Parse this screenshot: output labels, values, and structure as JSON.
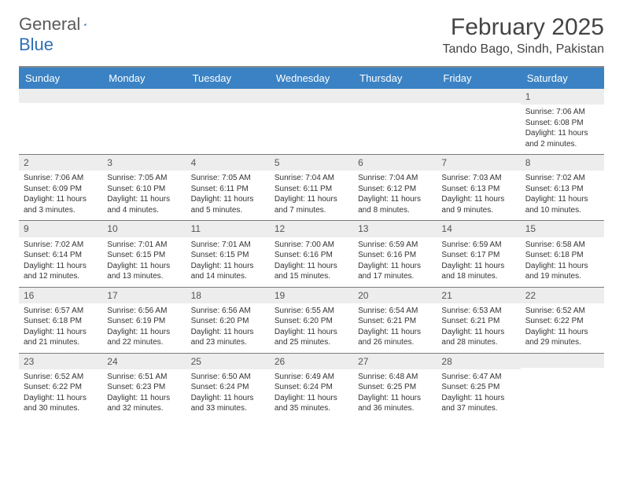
{
  "logo": {
    "text1": "General",
    "text2": "Blue",
    "accent": "#2f6fb3"
  },
  "title": "February 2025",
  "location": "Tando Bago, Sindh, Pakistan",
  "colors": {
    "header_bg": "#3a82c4",
    "header_text": "#ffffff",
    "daynum_bg": "#ededed",
    "page_bg": "#ffffff",
    "text": "#333333",
    "rule": "#7a7a7a"
  },
  "dayHeaders": [
    "Sunday",
    "Monday",
    "Tuesday",
    "Wednesday",
    "Thursday",
    "Friday",
    "Saturday"
  ],
  "weeks": [
    [
      null,
      null,
      null,
      null,
      null,
      null,
      {
        "n": "1",
        "sunrise": "7:06 AM",
        "sunset": "6:08 PM",
        "daylight": "11 hours and 2 minutes."
      }
    ],
    [
      {
        "n": "2",
        "sunrise": "7:06 AM",
        "sunset": "6:09 PM",
        "daylight": "11 hours and 3 minutes."
      },
      {
        "n": "3",
        "sunrise": "7:05 AM",
        "sunset": "6:10 PM",
        "daylight": "11 hours and 4 minutes."
      },
      {
        "n": "4",
        "sunrise": "7:05 AM",
        "sunset": "6:11 PM",
        "daylight": "11 hours and 5 minutes."
      },
      {
        "n": "5",
        "sunrise": "7:04 AM",
        "sunset": "6:11 PM",
        "daylight": "11 hours and 7 minutes."
      },
      {
        "n": "6",
        "sunrise": "7:04 AM",
        "sunset": "6:12 PM",
        "daylight": "11 hours and 8 minutes."
      },
      {
        "n": "7",
        "sunrise": "7:03 AM",
        "sunset": "6:13 PM",
        "daylight": "11 hours and 9 minutes."
      },
      {
        "n": "8",
        "sunrise": "7:02 AM",
        "sunset": "6:13 PM",
        "daylight": "11 hours and 10 minutes."
      }
    ],
    [
      {
        "n": "9",
        "sunrise": "7:02 AM",
        "sunset": "6:14 PM",
        "daylight": "11 hours and 12 minutes."
      },
      {
        "n": "10",
        "sunrise": "7:01 AM",
        "sunset": "6:15 PM",
        "daylight": "11 hours and 13 minutes."
      },
      {
        "n": "11",
        "sunrise": "7:01 AM",
        "sunset": "6:15 PM",
        "daylight": "11 hours and 14 minutes."
      },
      {
        "n": "12",
        "sunrise": "7:00 AM",
        "sunset": "6:16 PM",
        "daylight": "11 hours and 15 minutes."
      },
      {
        "n": "13",
        "sunrise": "6:59 AM",
        "sunset": "6:16 PM",
        "daylight": "11 hours and 17 minutes."
      },
      {
        "n": "14",
        "sunrise": "6:59 AM",
        "sunset": "6:17 PM",
        "daylight": "11 hours and 18 minutes."
      },
      {
        "n": "15",
        "sunrise": "6:58 AM",
        "sunset": "6:18 PM",
        "daylight": "11 hours and 19 minutes."
      }
    ],
    [
      {
        "n": "16",
        "sunrise": "6:57 AM",
        "sunset": "6:18 PM",
        "daylight": "11 hours and 21 minutes."
      },
      {
        "n": "17",
        "sunrise": "6:56 AM",
        "sunset": "6:19 PM",
        "daylight": "11 hours and 22 minutes."
      },
      {
        "n": "18",
        "sunrise": "6:56 AM",
        "sunset": "6:20 PM",
        "daylight": "11 hours and 23 minutes."
      },
      {
        "n": "19",
        "sunrise": "6:55 AM",
        "sunset": "6:20 PM",
        "daylight": "11 hours and 25 minutes."
      },
      {
        "n": "20",
        "sunrise": "6:54 AM",
        "sunset": "6:21 PM",
        "daylight": "11 hours and 26 minutes."
      },
      {
        "n": "21",
        "sunrise": "6:53 AM",
        "sunset": "6:21 PM",
        "daylight": "11 hours and 28 minutes."
      },
      {
        "n": "22",
        "sunrise": "6:52 AM",
        "sunset": "6:22 PM",
        "daylight": "11 hours and 29 minutes."
      }
    ],
    [
      {
        "n": "23",
        "sunrise": "6:52 AM",
        "sunset": "6:22 PM",
        "daylight": "11 hours and 30 minutes."
      },
      {
        "n": "24",
        "sunrise": "6:51 AM",
        "sunset": "6:23 PM",
        "daylight": "11 hours and 32 minutes."
      },
      {
        "n": "25",
        "sunrise": "6:50 AM",
        "sunset": "6:24 PM",
        "daylight": "11 hours and 33 minutes."
      },
      {
        "n": "26",
        "sunrise": "6:49 AM",
        "sunset": "6:24 PM",
        "daylight": "11 hours and 35 minutes."
      },
      {
        "n": "27",
        "sunrise": "6:48 AM",
        "sunset": "6:25 PM",
        "daylight": "11 hours and 36 minutes."
      },
      {
        "n": "28",
        "sunrise": "6:47 AM",
        "sunset": "6:25 PM",
        "daylight": "11 hours and 37 minutes."
      },
      null
    ]
  ],
  "labels": {
    "sunrise": "Sunrise:",
    "sunset": "Sunset:",
    "daylight": "Daylight:"
  }
}
